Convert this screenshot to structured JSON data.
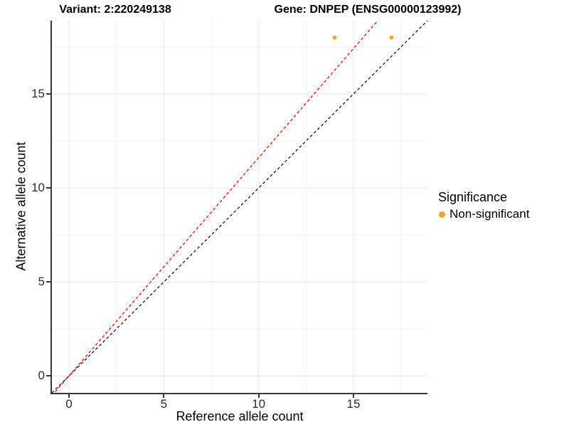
{
  "chart_data": {
    "type": "scatter",
    "variant_title": "Variant: 2:220249138",
    "gene_title": "Gene: DNPEP (ENSG00000123992)",
    "xlabel": "Reference allele count",
    "ylabel": "Alternative allele count",
    "xlim": [
      -0.9,
      18.9
    ],
    "ylim": [
      -0.9,
      18.9
    ],
    "xticks": [
      0,
      5,
      10,
      15
    ],
    "yticks": [
      0,
      5,
      10,
      15
    ],
    "minor_xticks": [
      2.5,
      7.5,
      12.5,
      17.5
    ],
    "minor_yticks": [
      2.5,
      7.5,
      12.5,
      17.5
    ],
    "grid": "major and minor gridlines on white background",
    "points": [
      {
        "x": 14,
        "y": 18,
        "series": "Non-significant"
      },
      {
        "x": 17,
        "y": 18,
        "series": "Non-significant"
      }
    ],
    "lines": [
      {
        "name": "identity-line",
        "slope": 1,
        "intercept": 0,
        "style": "dashed",
        "color": "#141414"
      },
      {
        "name": "allelic-ratio-line",
        "slope": 1.161,
        "intercept": 0,
        "style": "dashed",
        "color": "#F40000"
      }
    ],
    "legend": {
      "position": "right",
      "title": "Significance",
      "entries": [
        {
          "label": "Non-significant",
          "color": "#F8A029",
          "marker": "circle"
        }
      ]
    },
    "style": {
      "point_color": "#F8A029",
      "point_radius": 2.8,
      "grid_major_color": "#E6E6E6",
      "grid_minor_color": "#F3F3F3",
      "axis_line_color": "#3A3A3A",
      "tick_label_color": "#2B2B2B"
    }
  }
}
